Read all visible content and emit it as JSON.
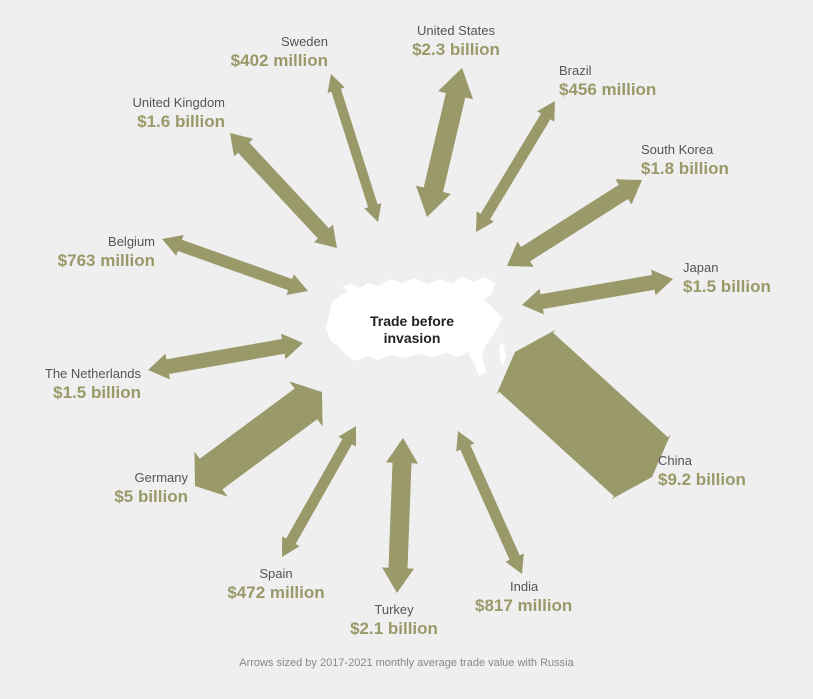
{
  "center_label": "Trade before\ninvasion",
  "footnote": "Arrows sized by 2017-2021 monthly average trade value with Russia",
  "colors": {
    "arrow": "#9a996a",
    "value_text": "#9a996a",
    "name_text": "#555555",
    "background": "#efefef"
  },
  "partners": [
    {
      "name": "United States",
      "value": "$2.3 billion"
    },
    {
      "name": "Brazil",
      "value": "$456 million"
    },
    {
      "name": "South Korea",
      "value": "$1.8 billion"
    },
    {
      "name": "Japan",
      "value": "$1.5 billion"
    },
    {
      "name": "China",
      "value": "$9.2 billion"
    },
    {
      "name": "India",
      "value": "$817 million"
    },
    {
      "name": "Turkey",
      "value": "$2.1 billion"
    },
    {
      "name": "Spain",
      "value": "$472 million"
    },
    {
      "name": "Germany",
      "value": "$5 billion"
    },
    {
      "name": "The Netherlands",
      "value": "$1.5 billion"
    },
    {
      "name": "Belgium",
      "value": "$763 million"
    },
    {
      "name": "United Kingdom",
      "value": "$1.6 billion"
    },
    {
      "name": "Sweden",
      "value": "$402 million"
    }
  ]
}
